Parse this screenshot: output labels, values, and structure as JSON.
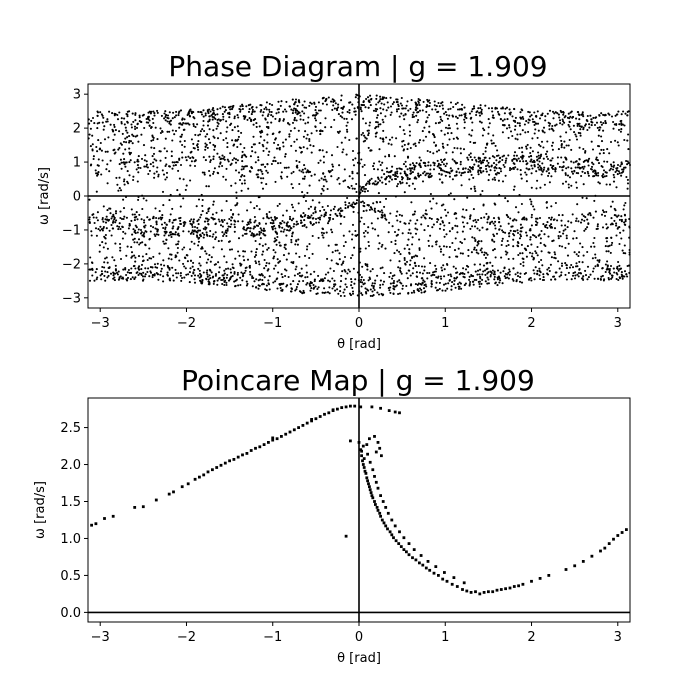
{
  "chart_data": [
    {
      "type": "scatter",
      "title": "Phase Diagram | g = 1.909",
      "xlabel": "θ [rad]",
      "ylabel": "ω [rad/s]",
      "xlim": [
        -3.1416,
        3.1416
      ],
      "ylim": [
        -3.3,
        3.3
      ],
      "xticks": [
        -3,
        -2,
        -1,
        0,
        1,
        2,
        3
      ],
      "yticks": [
        -3,
        -2,
        -1,
        0,
        1,
        2,
        3
      ],
      "xtick_labels": [
        "−3",
        "−2",
        "−1",
        "0",
        "1",
        "2",
        "3"
      ],
      "ytick_labels": [
        "−3",
        "−2",
        "−1",
        "0",
        "1",
        "2",
        "3"
      ],
      "grid": false,
      "reference_lines": {
        "x": 0,
        "y": 0
      },
      "marker_color": "#000000",
      "generator": {
        "n_points": 4500,
        "description": "Dense chaotic trajectory filling |ω| ≲ 2.5 at θ=±π and ≲ 3.0 at θ=0, with denser cusped bands"
      },
      "envelope": {
        "theta": [
          -3.1416,
          -2.5,
          -2.0,
          -1.5,
          -1.0,
          -0.5,
          0.0,
          0.5,
          1.0,
          1.5,
          2.0,
          2.5,
          3.1416
        ],
        "omega_max": [
          2.5,
          2.5,
          2.55,
          2.65,
          2.8,
          2.9,
          3.0,
          2.9,
          2.8,
          2.65,
          2.55,
          2.5,
          2.5
        ]
      }
    },
    {
      "type": "scatter",
      "title": "Poincare Map | g = 1.909",
      "xlabel": "θ [rad]",
      "ylabel": "ω [rad/s]",
      "xlim": [
        -3.1416,
        3.1416
      ],
      "ylim": [
        -0.13,
        2.9
      ],
      "xticks": [
        -3,
        -2,
        -1,
        0,
        1,
        2,
        3
      ],
      "yticks": [
        0.0,
        0.5,
        1.0,
        1.5,
        2.0,
        2.5
      ],
      "xtick_labels": [
        "−3",
        "−2",
        "−1",
        "0",
        "1",
        "2",
        "3"
      ],
      "ytick_labels": [
        "0.0",
        "0.5",
        "1.0",
        "1.5",
        "2.0",
        "2.5"
      ],
      "grid": false,
      "reference_lines": {
        "x": 0,
        "y": 0
      },
      "marker_color": "#000000",
      "points": [
        {
          "x": -3.1,
          "y": 1.18
        },
        {
          "x": -3.05,
          "y": 1.2
        },
        {
          "x": -2.95,
          "y": 1.27
        },
        {
          "x": -2.85,
          "y": 1.3
        },
        {
          "x": -2.6,
          "y": 1.42
        },
        {
          "x": -2.5,
          "y": 1.43
        },
        {
          "x": -2.35,
          "y": 1.52
        },
        {
          "x": -2.2,
          "y": 1.6
        },
        {
          "x": -2.15,
          "y": 1.63
        },
        {
          "x": -2.05,
          "y": 1.7
        },
        {
          "x": -1.98,
          "y": 1.74
        },
        {
          "x": -1.9,
          "y": 1.8
        },
        {
          "x": -1.85,
          "y": 1.83
        },
        {
          "x": -1.8,
          "y": 1.86
        },
        {
          "x": -1.75,
          "y": 1.9
        },
        {
          "x": -1.7,
          "y": 1.93
        },
        {
          "x": -1.65,
          "y": 1.96
        },
        {
          "x": -1.6,
          "y": 1.99
        },
        {
          "x": -1.55,
          "y": 2.02
        },
        {
          "x": -1.5,
          "y": 2.05
        },
        {
          "x": -1.45,
          "y": 2.07
        },
        {
          "x": -1.4,
          "y": 2.1
        },
        {
          "x": -1.35,
          "y": 2.13
        },
        {
          "x": -1.3,
          "y": 2.15
        },
        {
          "x": -1.25,
          "y": 2.19
        },
        {
          "x": -1.2,
          "y": 2.22
        },
        {
          "x": -1.15,
          "y": 2.24
        },
        {
          "x": -1.1,
          "y": 2.27
        },
        {
          "x": -1.05,
          "y": 2.3
        },
        {
          "x": -1.0,
          "y": 2.33
        },
        {
          "x": -0.95,
          "y": 2.35
        },
        {
          "x": -0.9,
          "y": 2.38
        },
        {
          "x": -0.85,
          "y": 2.41
        },
        {
          "x": -0.8,
          "y": 2.44
        },
        {
          "x": -0.75,
          "y": 2.47
        },
        {
          "x": -0.7,
          "y": 2.5
        },
        {
          "x": -0.65,
          "y": 2.53
        },
        {
          "x": -0.6,
          "y": 2.56
        },
        {
          "x": -0.55,
          "y": 2.59
        },
        {
          "x": -0.5,
          "y": 2.62
        },
        {
          "x": -0.45,
          "y": 2.65
        },
        {
          "x": -0.4,
          "y": 2.68
        },
        {
          "x": -0.35,
          "y": 2.7
        },
        {
          "x": -0.3,
          "y": 2.73
        },
        {
          "x": -0.25,
          "y": 2.75
        },
        {
          "x": -0.2,
          "y": 2.77
        },
        {
          "x": -0.15,
          "y": 2.78
        },
        {
          "x": -0.1,
          "y": 2.79
        },
        {
          "x": -0.05,
          "y": 2.79
        },
        {
          "x": -1.0,
          "y": 2.36
        },
        {
          "x": -0.55,
          "y": 2.61
        },
        {
          "x": -0.3,
          "y": 2.74
        },
        {
          "x": 0.02,
          "y": 2.78
        },
        {
          "x": 0.15,
          "y": 2.78
        },
        {
          "x": 0.25,
          "y": 2.76
        },
        {
          "x": 0.35,
          "y": 2.73
        },
        {
          "x": 0.42,
          "y": 2.71
        },
        {
          "x": 0.47,
          "y": 2.7
        },
        {
          "x": -0.15,
          "y": 1.03
        },
        {
          "x": -0.1,
          "y": 2.32
        },
        {
          "x": 0.0,
          "y": 2.3
        },
        {
          "x": 0.02,
          "y": 2.2
        },
        {
          "x": 0.03,
          "y": 2.12
        },
        {
          "x": 0.04,
          "y": 2.05
        },
        {
          "x": 0.06,
          "y": 1.96
        },
        {
          "x": 0.08,
          "y": 1.88
        },
        {
          "x": 0.1,
          "y": 1.78
        },
        {
          "x": 0.12,
          "y": 1.7
        },
        {
          "x": 0.14,
          "y": 1.62
        },
        {
          "x": 0.16,
          "y": 1.55
        },
        {
          "x": 0.19,
          "y": 1.46
        },
        {
          "x": 0.22,
          "y": 1.38
        },
        {
          "x": 0.25,
          "y": 1.3
        },
        {
          "x": 0.29,
          "y": 1.21
        },
        {
          "x": 0.33,
          "y": 1.13
        },
        {
          "x": 0.38,
          "y": 1.05
        },
        {
          "x": 0.43,
          "y": 0.97
        },
        {
          "x": 0.49,
          "y": 0.89
        },
        {
          "x": 0.55,
          "y": 0.82
        },
        {
          "x": 0.62,
          "y": 0.74
        },
        {
          "x": 0.7,
          "y": 0.67
        },
        {
          "x": 0.78,
          "y": 0.6
        },
        {
          "x": 0.87,
          "y": 0.53
        },
        {
          "x": 0.97,
          "y": 0.45
        },
        {
          "x": 1.08,
          "y": 0.38
        },
        {
          "x": 1.2,
          "y": 0.31
        },
        {
          "x": 0.05,
          "y": 2.0
        },
        {
          "x": 0.07,
          "y": 1.91
        },
        {
          "x": 0.09,
          "y": 1.82
        },
        {
          "x": 0.11,
          "y": 1.74
        },
        {
          "x": 0.13,
          "y": 1.66
        },
        {
          "x": 0.15,
          "y": 1.58
        },
        {
          "x": 0.18,
          "y": 1.5
        },
        {
          "x": 0.21,
          "y": 1.42
        },
        {
          "x": 0.24,
          "y": 1.34
        },
        {
          "x": 0.27,
          "y": 1.25
        },
        {
          "x": 0.31,
          "y": 1.17
        },
        {
          "x": 0.36,
          "y": 1.09
        },
        {
          "x": 0.4,
          "y": 1.01
        },
        {
          "x": 0.46,
          "y": 0.93
        },
        {
          "x": 0.52,
          "y": 0.85
        },
        {
          "x": 0.58,
          "y": 0.78
        },
        {
          "x": 0.66,
          "y": 0.71
        },
        {
          "x": 0.74,
          "y": 0.64
        },
        {
          "x": 0.82,
          "y": 0.57
        },
        {
          "x": 0.92,
          "y": 0.5
        },
        {
          "x": 1.02,
          "y": 0.42
        },
        {
          "x": 1.14,
          "y": 0.35
        },
        {
          "x": 0.16,
          "y": 1.93
        },
        {
          "x": 0.18,
          "y": 1.84
        },
        {
          "x": 0.2,
          "y": 1.76
        },
        {
          "x": 0.22,
          "y": 1.68
        },
        {
          "x": 0.25,
          "y": 1.58
        },
        {
          "x": 0.28,
          "y": 1.5
        },
        {
          "x": 0.31,
          "y": 1.42
        },
        {
          "x": 0.34,
          "y": 1.34
        },
        {
          "x": 0.38,
          "y": 1.25
        },
        {
          "x": 0.42,
          "y": 1.17
        },
        {
          "x": 0.47,
          "y": 1.09
        },
        {
          "x": 0.52,
          "y": 1.01
        },
        {
          "x": 0.58,
          "y": 0.93
        },
        {
          "x": 0.64,
          "y": 0.85
        },
        {
          "x": 0.72,
          "y": 0.77
        },
        {
          "x": 0.8,
          "y": 0.69
        },
        {
          "x": 0.89,
          "y": 0.62
        },
        {
          "x": 0.99,
          "y": 0.54
        },
        {
          "x": 1.1,
          "y": 0.47
        },
        {
          "x": 1.22,
          "y": 0.4
        },
        {
          "x": 0.05,
          "y": 2.25
        },
        {
          "x": 0.09,
          "y": 2.27
        },
        {
          "x": 0.12,
          "y": 2.35
        },
        {
          "x": 0.18,
          "y": 2.38
        },
        {
          "x": 0.22,
          "y": 2.3
        },
        {
          "x": 0.24,
          "y": 2.22
        },
        {
          "x": 0.2,
          "y": 2.17
        },
        {
          "x": 0.26,
          "y": 2.12
        },
        {
          "x": 0.03,
          "y": 2.18
        },
        {
          "x": 0.06,
          "y": 2.08
        },
        {
          "x": 0.1,
          "y": 2.14
        },
        {
          "x": 0.13,
          "y": 2.03
        },
        {
          "x": 1.3,
          "y": 0.27
        },
        {
          "x": 1.4,
          "y": 0.25
        },
        {
          "x": 1.5,
          "y": 0.28
        },
        {
          "x": 1.6,
          "y": 0.3
        },
        {
          "x": 1.7,
          "y": 0.32
        },
        {
          "x": 1.8,
          "y": 0.35
        },
        {
          "x": 1.9,
          "y": 0.38
        },
        {
          "x": 2.0,
          "y": 0.42
        },
        {
          "x": 2.1,
          "y": 0.46
        },
        {
          "x": 2.2,
          "y": 0.5
        },
        {
          "x": 2.4,
          "y": 0.58
        },
        {
          "x": 2.5,
          "y": 0.63
        },
        {
          "x": 2.6,
          "y": 0.69
        },
        {
          "x": 2.7,
          "y": 0.76
        },
        {
          "x": 2.8,
          "y": 0.83
        },
        {
          "x": 2.85,
          "y": 0.87
        },
        {
          "x": 2.9,
          "y": 0.93
        },
        {
          "x": 2.95,
          "y": 0.99
        },
        {
          "x": 3.0,
          "y": 1.04
        },
        {
          "x": 3.05,
          "y": 1.08
        },
        {
          "x": 3.1,
          "y": 1.12
        },
        {
          "x": 1.25,
          "y": 0.29
        },
        {
          "x": 1.35,
          "y": 0.28
        },
        {
          "x": 1.45,
          "y": 0.27
        },
        {
          "x": 1.55,
          "y": 0.28
        },
        {
          "x": 1.65,
          "y": 0.31
        },
        {
          "x": 1.75,
          "y": 0.33
        },
        {
          "x": 1.85,
          "y": 0.36
        }
      ]
    }
  ]
}
